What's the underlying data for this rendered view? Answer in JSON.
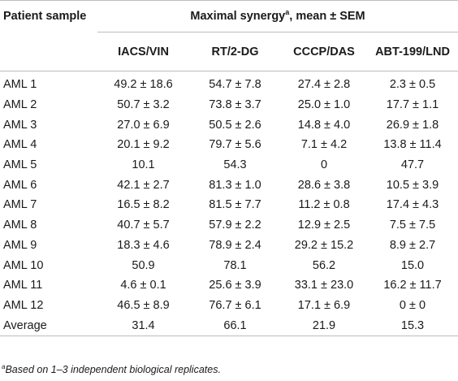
{
  "table": {
    "header": {
      "patient_label": "Patient sample",
      "group_label": "Maximal synergy",
      "group_sup": "a",
      "group_suffix": ", mean ± SEM",
      "columns": [
        "IACS/VIN",
        "RT/2-DG",
        "CCCP/DAS",
        "ABT-199/LND"
      ]
    },
    "rows": [
      {
        "sample": "AML 1",
        "values": [
          "49.2 ± 18.6",
          "54.7 ± 7.8",
          "27.4 ± 2.8",
          "2.3 ± 0.5"
        ]
      },
      {
        "sample": "AML 2",
        "values": [
          "50.7 ± 3.2",
          "73.8 ± 3.7",
          "25.0 ± 1.0",
          "17.7 ± 1.1"
        ]
      },
      {
        "sample": "AML 3",
        "values": [
          "27.0 ± 6.9",
          "50.5 ± 2.6",
          "14.8 ± 4.0",
          "26.9 ± 1.8"
        ]
      },
      {
        "sample": "AML 4",
        "values": [
          "20.1 ± 9.2",
          "79.7 ± 5.6",
          "7.1 ± 4.2",
          "13.8 ± 11.4"
        ]
      },
      {
        "sample": "AML 5",
        "values": [
          "10.1",
          "54.3",
          "0",
          "47.7"
        ]
      },
      {
        "sample": "AML 6",
        "values": [
          "42.1 ± 2.7",
          "81.3 ± 1.0",
          "28.6 ± 3.8",
          "10.5 ± 3.9"
        ]
      },
      {
        "sample": "AML 7",
        "values": [
          "16.5 ± 8.2",
          "81.5 ± 7.7",
          "11.2 ± 0.8",
          "17.4 ± 4.3"
        ]
      },
      {
        "sample": "AML 8",
        "values": [
          "40.7 ± 5.7",
          "57.9 ± 2.2",
          "12.9 ± 2.5",
          "7.5 ± 7.5"
        ]
      },
      {
        "sample": "AML 9",
        "values": [
          "18.3 ± 4.6",
          "78.9 ± 2.4",
          "29.2 ± 15.2",
          "8.9 ± 2.7"
        ]
      },
      {
        "sample": "AML 10",
        "values": [
          "50.9",
          "78.1",
          "56.2",
          "15.0"
        ]
      },
      {
        "sample": "AML 11",
        "values": [
          "4.6 ± 0.1",
          "25.6 ± 3.9",
          "33.1 ± 23.0",
          "16.2 ± 11.7"
        ]
      },
      {
        "sample": "AML 12",
        "values": [
          "46.5 ± 8.9",
          "76.7 ± 6.1",
          "17.1 ± 6.9",
          "0 ± 0"
        ]
      },
      {
        "sample": "Average",
        "values": [
          "31.4",
          "66.1",
          "21.9",
          "15.3"
        ]
      }
    ]
  },
  "footnote": {
    "sup": "a",
    "text": "Based on 1–3 independent biological replicates."
  }
}
